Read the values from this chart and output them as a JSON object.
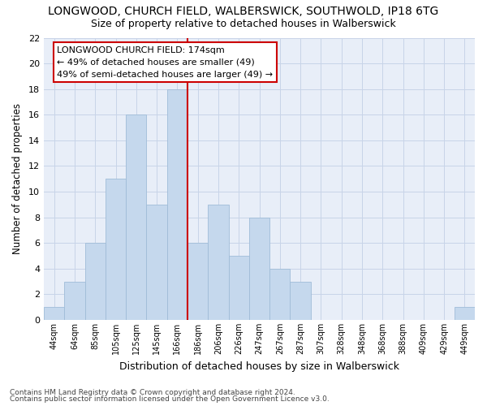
{
  "title": "LONGWOOD, CHURCH FIELD, WALBERSWICK, SOUTHWOLD, IP18 6TG",
  "subtitle": "Size of property relative to detached houses in Walberswick",
  "xlabel": "Distribution of detached houses by size in Walberswick",
  "ylabel": "Number of detached properties",
  "footnote1": "Contains HM Land Registry data © Crown copyright and database right 2024.",
  "footnote2": "Contains public sector information licensed under the Open Government Licence v3.0.",
  "categories": [
    "44sqm",
    "64sqm",
    "85sqm",
    "105sqm",
    "125sqm",
    "145sqm",
    "166sqm",
    "186sqm",
    "206sqm",
    "226sqm",
    "247sqm",
    "267sqm",
    "287sqm",
    "307sqm",
    "328sqm",
    "348sqm",
    "368sqm",
    "388sqm",
    "409sqm",
    "429sqm",
    "449sqm"
  ],
  "values": [
    1,
    3,
    6,
    11,
    16,
    9,
    18,
    6,
    9,
    5,
    8,
    4,
    3,
    0,
    0,
    0,
    0,
    0,
    0,
    0,
    1
  ],
  "bar_color": "#c5d8ed",
  "bar_edge_color": "#a0bcd8",
  "highlight_line_color": "#cc0000",
  "ylim": [
    0,
    22
  ],
  "yticks": [
    0,
    2,
    4,
    6,
    8,
    10,
    12,
    14,
    16,
    18,
    20,
    22
  ],
  "annotation_title": "LONGWOOD CHURCH FIELD: 174sqm",
  "annotation_line1": "← 49% of detached houses are smaller (49)",
  "annotation_line2": "49% of semi-detached houses are larger (49) →",
  "annotation_box_color": "#ffffff",
  "annotation_border_color": "#cc0000",
  "grid_color": "#c8d4e8",
  "bg_color": "#e8eef8",
  "title_fontsize": 10,
  "subtitle_fontsize": 9
}
